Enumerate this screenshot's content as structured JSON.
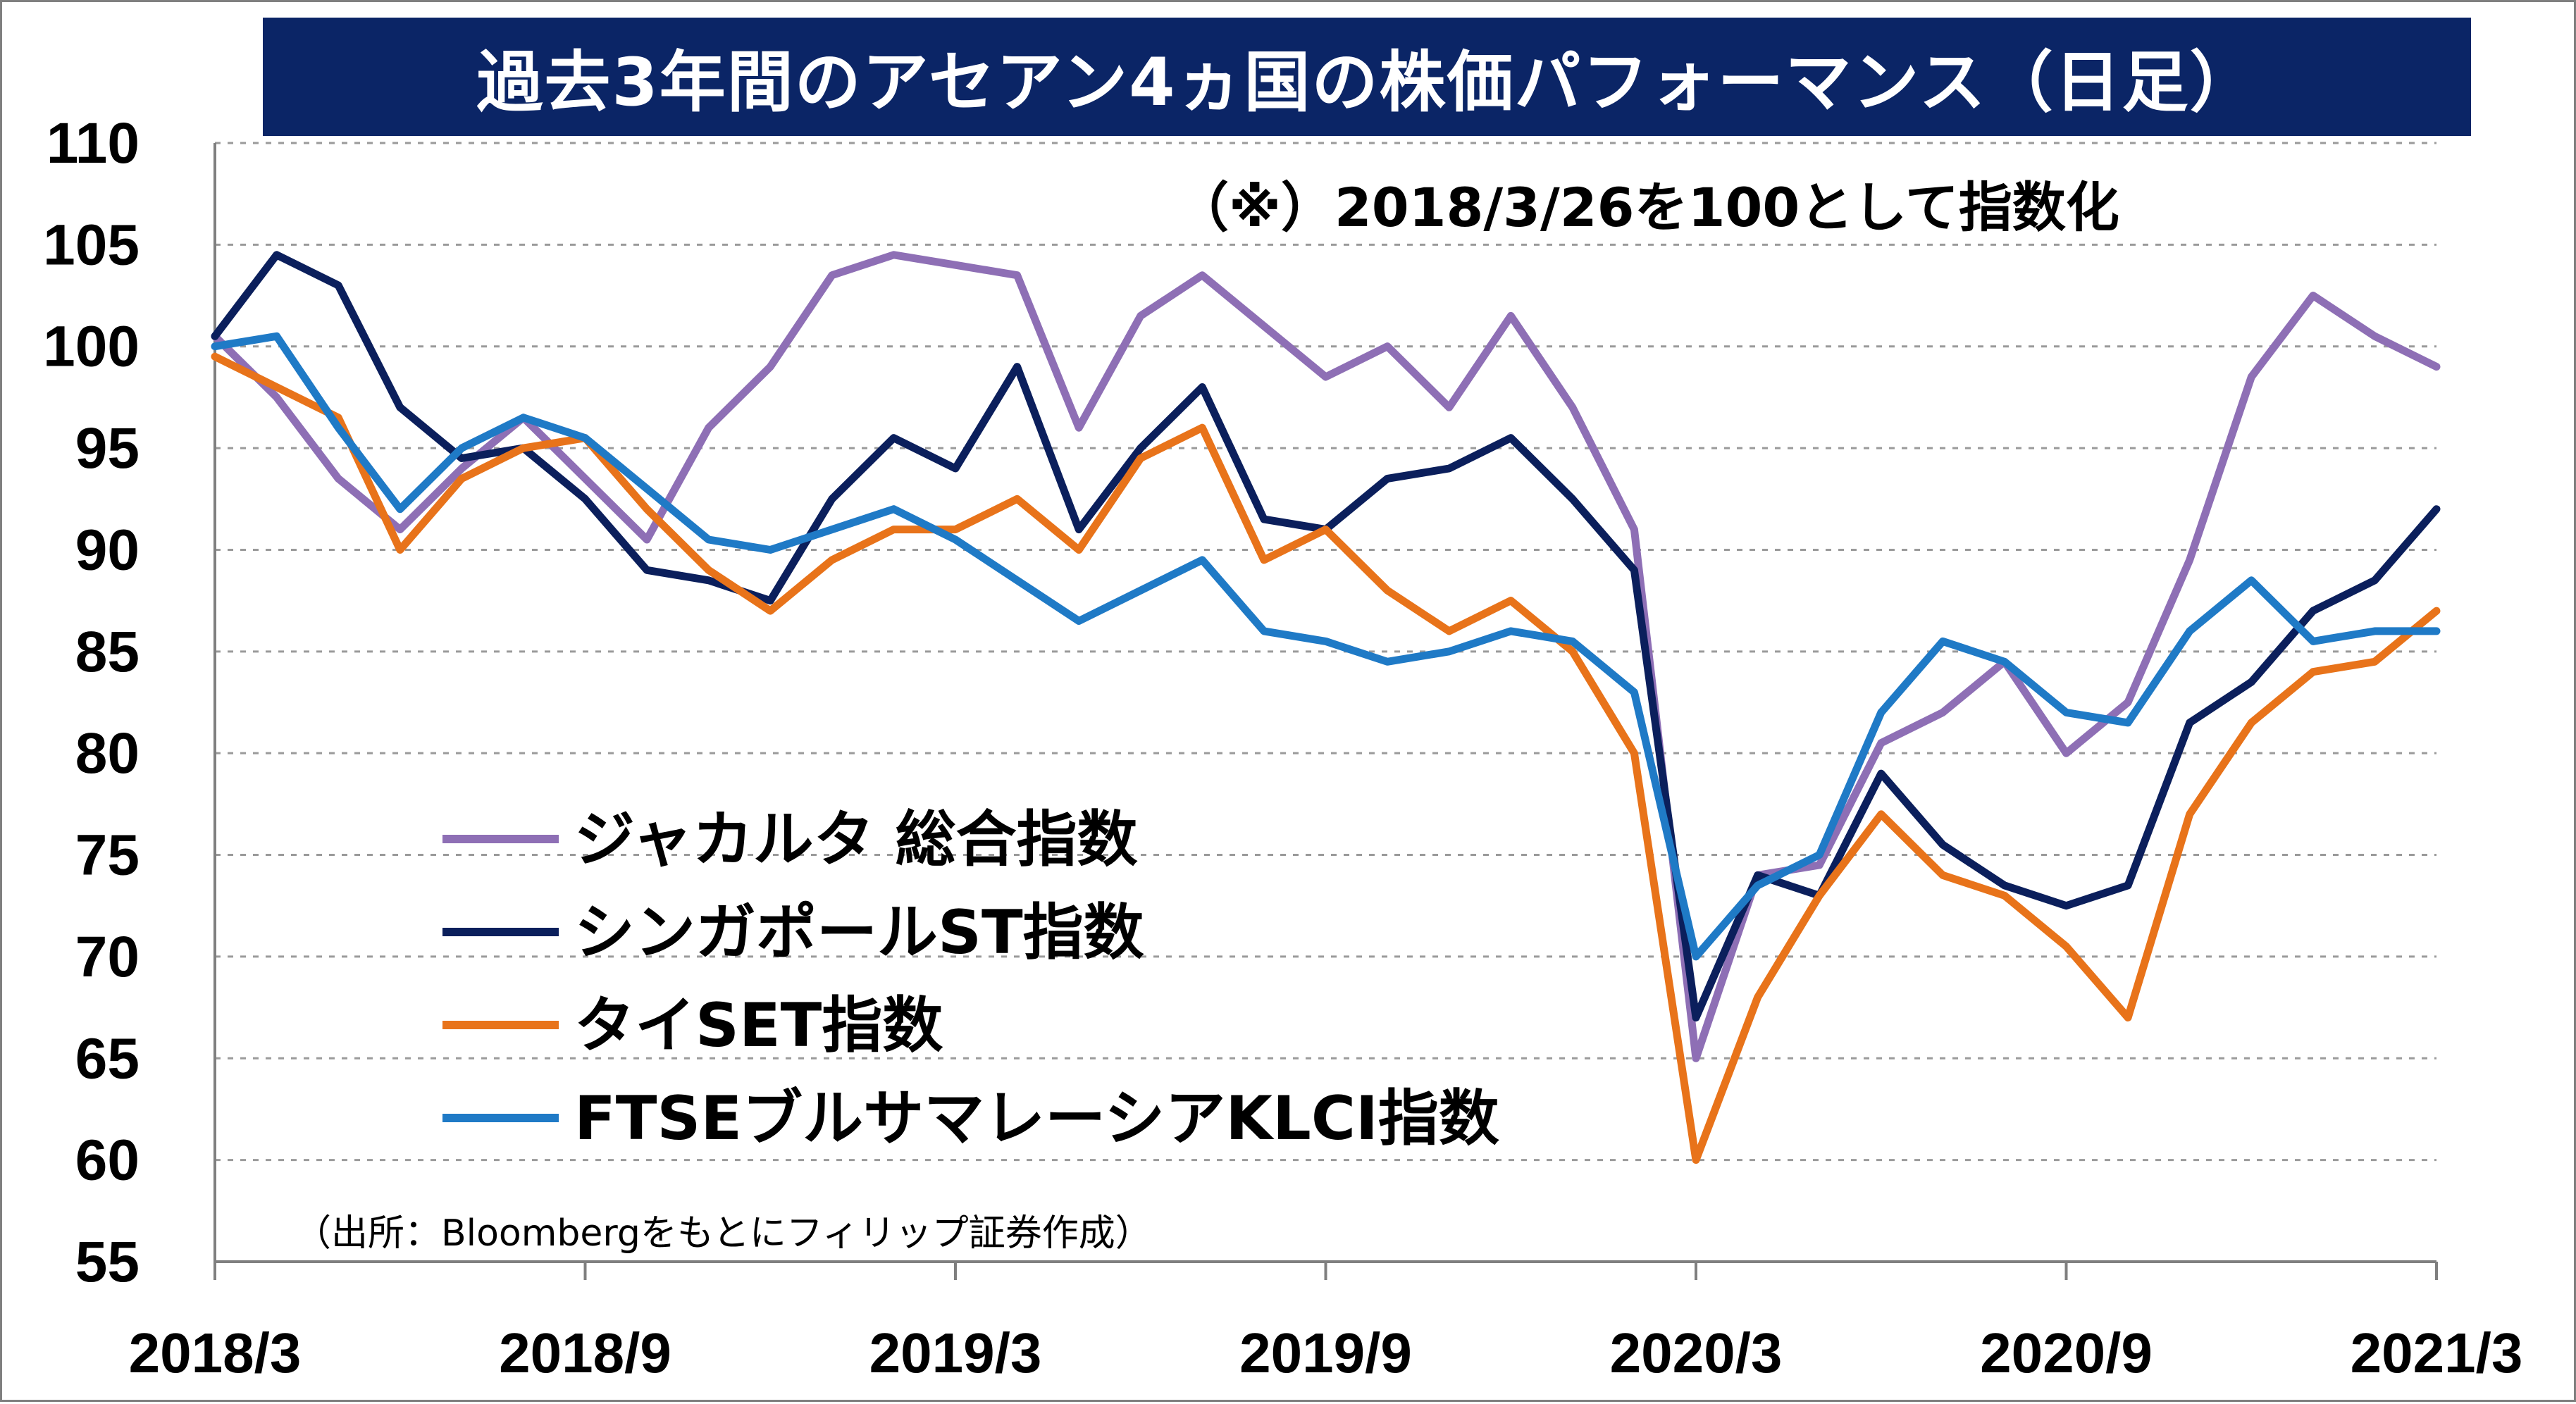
{
  "chart_data": {
    "type": "line",
    "title": "過去3年間のアセアン4ヵ国の株価パフォーマンス（日足）",
    "note": "（※）2018/3/26を100として指数化",
    "source": "（出所：Bloombergをもとにフィリップ証券作成）",
    "xlabel": "",
    "ylabel": "",
    "ylim": [
      55,
      110
    ],
    "yticks": [
      110,
      105,
      100,
      95,
      90,
      85,
      80,
      75,
      70,
      65,
      60,
      55
    ],
    "xticks": [
      "2018/3",
      "2018/9",
      "2019/3",
      "2019/9",
      "2020/3",
      "2020/9",
      "2021/3"
    ],
    "grid": "horizontal-dotted",
    "legend_position": "lower-left",
    "series": [
      {
        "name": "ジャカルタ 総合指数",
        "color": "#8e6fb5",
        "points": [
          [
            "2018-03",
            100.5
          ],
          [
            "2018-04",
            97.5
          ],
          [
            "2018-05",
            93.5
          ],
          [
            "2018-06",
            91.0
          ],
          [
            "2018-07",
            94.0
          ],
          [
            "2018-08",
            96.5
          ],
          [
            "2018-09",
            93.5
          ],
          [
            "2018-10",
            90.5
          ],
          [
            "2018-11",
            96.0
          ],
          [
            "2018-12",
            99.0
          ],
          [
            "2019-01",
            103.5
          ],
          [
            "2019-02",
            104.5
          ],
          [
            "2019-03",
            104.0
          ],
          [
            "2019-04",
            103.5
          ],
          [
            "2019-05",
            96.0
          ],
          [
            "2019-06",
            101.5
          ],
          [
            "2019-07",
            103.5
          ],
          [
            "2019-08",
            101.0
          ],
          [
            "2019-09",
            98.5
          ],
          [
            "2019-10",
            100.0
          ],
          [
            "2019-11",
            97.0
          ],
          [
            "2019-12",
            101.5
          ],
          [
            "2020-01",
            97.0
          ],
          [
            "2020-02",
            91.0
          ],
          [
            "2020-03",
            65.0
          ],
          [
            "2020-04",
            74.0
          ],
          [
            "2020-05",
            74.5
          ],
          [
            "2020-06",
            80.5
          ],
          [
            "2020-07",
            82.0
          ],
          [
            "2020-08",
            84.5
          ],
          [
            "2020-09",
            80.0
          ],
          [
            "2020-10",
            82.5
          ],
          [
            "2020-11",
            89.5
          ],
          [
            "2020-12",
            98.5
          ],
          [
            "2021-01",
            102.5
          ],
          [
            "2021-02",
            100.5
          ],
          [
            "2021-03",
            99.0
          ]
        ]
      },
      {
        "name": "シンガポールST指数",
        "color": "#0b1f5c",
        "points": [
          [
            "2018-03",
            100.5
          ],
          [
            "2018-04",
            104.5
          ],
          [
            "2018-05",
            103.0
          ],
          [
            "2018-06",
            97.0
          ],
          [
            "2018-07",
            94.5
          ],
          [
            "2018-08",
            95.0
          ],
          [
            "2018-09",
            92.5
          ],
          [
            "2018-10",
            89.0
          ],
          [
            "2018-11",
            88.5
          ],
          [
            "2018-12",
            87.5
          ],
          [
            "2019-01",
            92.5
          ],
          [
            "2019-02",
            95.5
          ],
          [
            "2019-03",
            94.0
          ],
          [
            "2019-04",
            99.0
          ],
          [
            "2019-05",
            91.0
          ],
          [
            "2019-06",
            95.0
          ],
          [
            "2019-07",
            98.0
          ],
          [
            "2019-08",
            91.5
          ],
          [
            "2019-09",
            91.0
          ],
          [
            "2019-10",
            93.5
          ],
          [
            "2019-11",
            94.0
          ],
          [
            "2019-12",
            95.5
          ],
          [
            "2020-01",
            92.5
          ],
          [
            "2020-02",
            89.0
          ],
          [
            "2020-03",
            67.0
          ],
          [
            "2020-04",
            74.0
          ],
          [
            "2020-05",
            73.0
          ],
          [
            "2020-06",
            79.0
          ],
          [
            "2020-07",
            75.5
          ],
          [
            "2020-08",
            73.5
          ],
          [
            "2020-09",
            72.5
          ],
          [
            "2020-10",
            73.5
          ],
          [
            "2020-11",
            81.5
          ],
          [
            "2020-12",
            83.5
          ],
          [
            "2021-01",
            87.0
          ],
          [
            "2021-02",
            88.5
          ],
          [
            "2021-03",
            92.0
          ]
        ]
      },
      {
        "name": "タイSET指数",
        "color": "#e8731a",
        "points": [
          [
            "2018-03",
            99.5
          ],
          [
            "2018-04",
            98.0
          ],
          [
            "2018-05",
            96.5
          ],
          [
            "2018-06",
            90.0
          ],
          [
            "2018-07",
            93.5
          ],
          [
            "2018-08",
            95.0
          ],
          [
            "2018-09",
            95.5
          ],
          [
            "2018-10",
            92.0
          ],
          [
            "2018-11",
            89.0
          ],
          [
            "2018-12",
            87.0
          ],
          [
            "2019-01",
            89.5
          ],
          [
            "2019-02",
            91.0
          ],
          [
            "2019-03",
            91.0
          ],
          [
            "2019-04",
            92.5
          ],
          [
            "2019-05",
            90.0
          ],
          [
            "2019-06",
            94.5
          ],
          [
            "2019-07",
            96.0
          ],
          [
            "2019-08",
            89.5
          ],
          [
            "2019-09",
            91.0
          ],
          [
            "2019-10",
            88.0
          ],
          [
            "2019-11",
            86.0
          ],
          [
            "2019-12",
            87.5
          ],
          [
            "2020-01",
            85.0
          ],
          [
            "2020-02",
            80.0
          ],
          [
            "2020-03",
            60.0
          ],
          [
            "2020-04",
            68.0
          ],
          [
            "2020-05",
            73.0
          ],
          [
            "2020-06",
            77.0
          ],
          [
            "2020-07",
            74.0
          ],
          [
            "2020-08",
            73.0
          ],
          [
            "2020-09",
            70.5
          ],
          [
            "2020-10",
            67.0
          ],
          [
            "2020-11",
            77.0
          ],
          [
            "2020-12",
            81.5
          ],
          [
            "2021-01",
            84.0
          ],
          [
            "2021-02",
            84.5
          ],
          [
            "2021-03",
            87.0
          ]
        ]
      },
      {
        "name": "FTSEブルサマレーシアKLCI指数",
        "color": "#1f7ac6",
        "points": [
          [
            "2018-03",
            100.0
          ],
          [
            "2018-04",
            100.5
          ],
          [
            "2018-05",
            96.0
          ],
          [
            "2018-06",
            92.0
          ],
          [
            "2018-07",
            95.0
          ],
          [
            "2018-08",
            96.5
          ],
          [
            "2018-09",
            95.5
          ],
          [
            "2018-10",
            93.0
          ],
          [
            "2018-11",
            90.5
          ],
          [
            "2018-12",
            90.0
          ],
          [
            "2019-01",
            91.0
          ],
          [
            "2019-02",
            92.0
          ],
          [
            "2019-03",
            90.5
          ],
          [
            "2019-04",
            88.5
          ],
          [
            "2019-05",
            86.5
          ],
          [
            "2019-06",
            88.0
          ],
          [
            "2019-07",
            89.5
          ],
          [
            "2019-08",
            86.0
          ],
          [
            "2019-09",
            85.5
          ],
          [
            "2019-10",
            84.5
          ],
          [
            "2019-11",
            85.0
          ],
          [
            "2019-12",
            86.0
          ],
          [
            "2020-01",
            85.5
          ],
          [
            "2020-02",
            83.0
          ],
          [
            "2020-03",
            70.0
          ],
          [
            "2020-04",
            73.5
          ],
          [
            "2020-05",
            75.0
          ],
          [
            "2020-06",
            82.0
          ],
          [
            "2020-07",
            85.5
          ],
          [
            "2020-08",
            84.5
          ],
          [
            "2020-09",
            82.0
          ],
          [
            "2020-10",
            81.5
          ],
          [
            "2020-11",
            86.0
          ],
          [
            "2020-12",
            88.5
          ],
          [
            "2021-01",
            85.5
          ],
          [
            "2021-02",
            86.0
          ],
          [
            "2021-03",
            86.0
          ]
        ]
      }
    ]
  }
}
